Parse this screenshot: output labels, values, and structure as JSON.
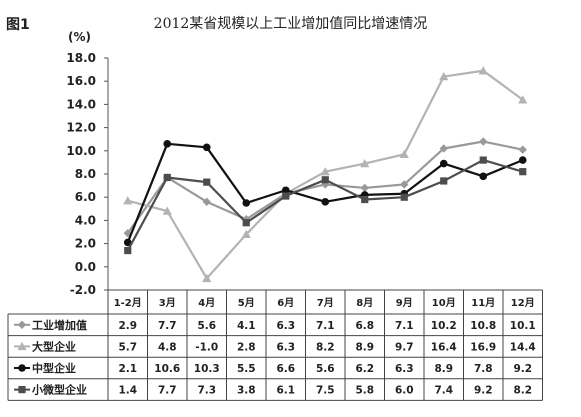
{
  "figure_label": "图1",
  "title": "2012某省规模以上工业增加值同比增速情况",
  "unit": "(%)",
  "chart_data": {
    "type": "line",
    "title": "2012某省规模以上工业增加值同比增速情况",
    "ylabel": "(%)",
    "ylim": [
      -2.0,
      18.0
    ],
    "yticks": [
      "18.0",
      "16.0",
      "14.0",
      "12.0",
      "10.0",
      "8.0",
      "6.0",
      "4.0",
      "2.0",
      "0.0",
      "-2.0"
    ],
    "categories": [
      "1-2月",
      "3月",
      "4月",
      "5月",
      "6月",
      "7月",
      "8月",
      "9月",
      "10月",
      "11月",
      "12月"
    ],
    "grid": false,
    "legend": "table-below",
    "series": [
      {
        "name": "工业增加值",
        "color": "#999999",
        "marker": "diamond",
        "values": [
          2.9,
          7.7,
          5.6,
          4.1,
          6.3,
          7.1,
          6.8,
          7.1,
          10.2,
          10.8,
          10.1
        ],
        "labels": [
          "2.9",
          "7.7",
          "5.6",
          "4.1",
          "6.3",
          "7.1",
          "6.8",
          "7.1",
          "10.2",
          "10.8",
          "10.1"
        ]
      },
      {
        "name": "大型企业",
        "color": "#b3b3b3",
        "marker": "triangle",
        "values": [
          5.7,
          4.8,
          -1.0,
          2.8,
          6.3,
          8.2,
          8.9,
          9.7,
          16.4,
          16.9,
          14.4
        ],
        "labels": [
          "5.7",
          "4.8",
          "-1.0",
          "2.8",
          "6.3",
          "8.2",
          "8.9",
          "9.7",
          "16.4",
          "16.9",
          "14.4"
        ]
      },
      {
        "name": "中型企业",
        "color": "#111111",
        "marker": "circle",
        "values": [
          2.1,
          10.6,
          10.3,
          5.5,
          6.6,
          5.6,
          6.2,
          6.3,
          8.9,
          7.8,
          9.2
        ],
        "labels": [
          "2.1",
          "10.6",
          "10.3",
          "5.5",
          "6.6",
          "5.6",
          "6.2",
          "6.3",
          "8.9",
          "7.8",
          "9.2"
        ]
      },
      {
        "name": "小微型企业",
        "color": "#4d4d4d",
        "marker": "square",
        "values": [
          1.4,
          7.7,
          7.3,
          3.8,
          6.1,
          7.5,
          5.8,
          6.0,
          7.4,
          9.2,
          8.2
        ],
        "labels": [
          "1.4",
          "7.7",
          "7.3",
          "3.8",
          "6.1",
          "7.5",
          "5.8",
          "6.0",
          "7.4",
          "9.2",
          "8.2"
        ]
      }
    ]
  }
}
